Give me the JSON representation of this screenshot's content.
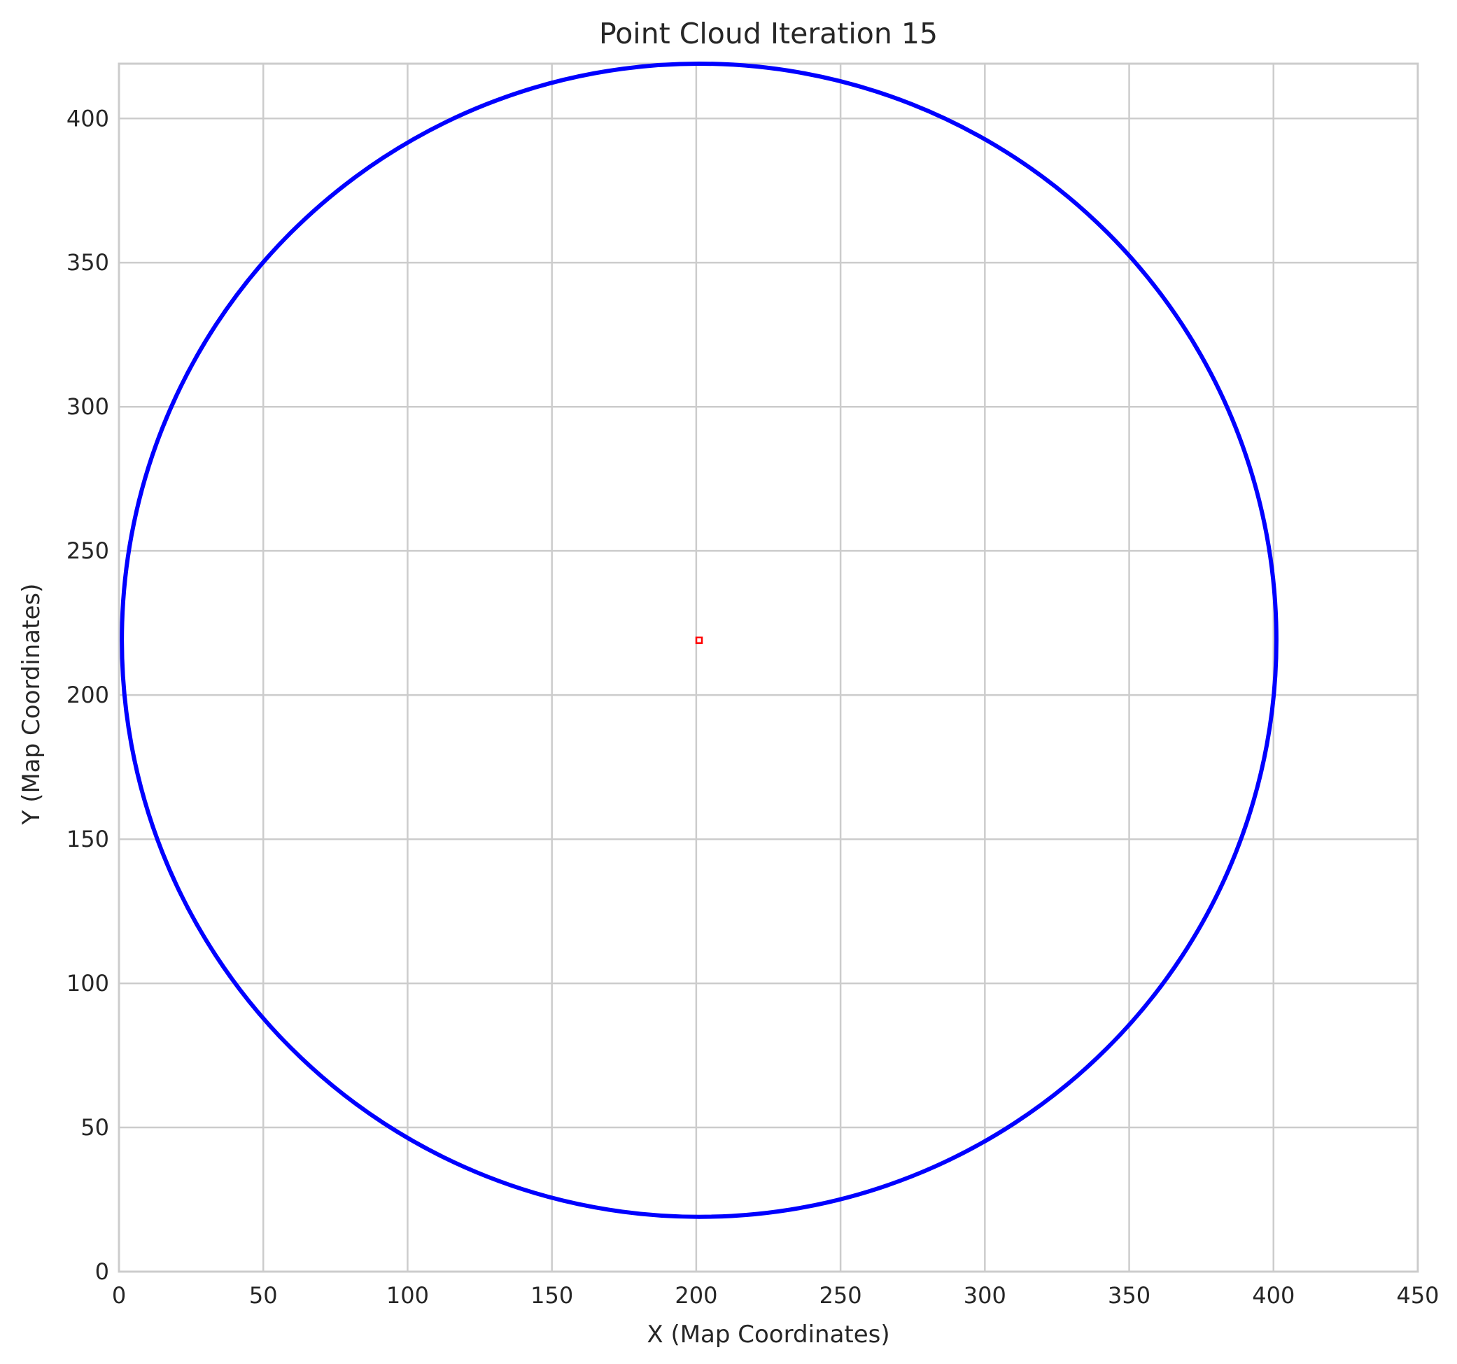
{
  "chart_data": {
    "type": "scatter",
    "title": "Point Cloud Iteration 15",
    "xlabel": "X (Map Coordinates)",
    "ylabel": "Y (Map Coordinates)",
    "xlim": [
      0,
      450
    ],
    "ylim": [
      0,
      419
    ],
    "xticks": [
      0,
      50,
      100,
      150,
      200,
      250,
      300,
      350,
      400,
      450
    ],
    "yticks": [
      0,
      50,
      100,
      150,
      200,
      250,
      300,
      350,
      400
    ],
    "grid": true,
    "legend": "none",
    "series": [
      {
        "kind": "circle-outline",
        "center": [
          201,
          219
        ],
        "radius": 200,
        "color": "#0000ff"
      },
      {
        "kind": "marker",
        "x": [
          201
        ],
        "y": [
          219
        ],
        "color": "#ff0000"
      }
    ],
    "colors": {
      "grid": "#cccccc",
      "axes": "#cccccc",
      "text": "#262626"
    }
  }
}
